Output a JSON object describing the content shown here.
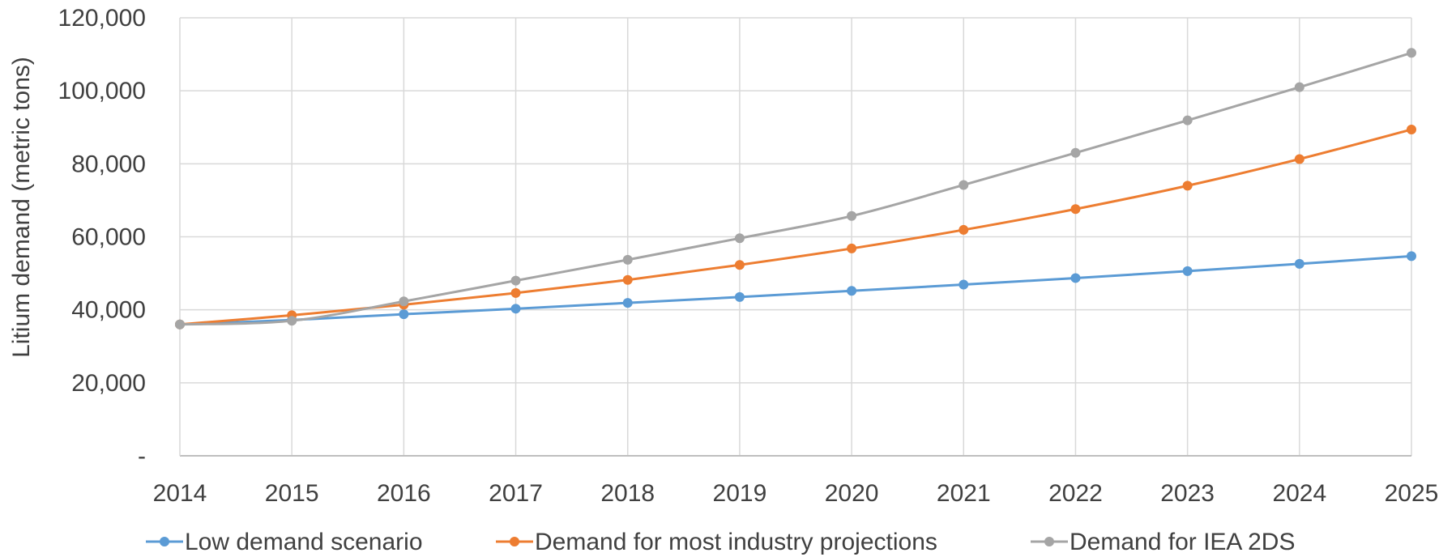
{
  "chart_data": {
    "type": "line",
    "title": "",
    "xlabel": "",
    "ylabel": "Litium demand (metric tons)",
    "x": [
      "2014",
      "2015",
      "2016",
      "2017",
      "2018",
      "2019",
      "2020",
      "2021",
      "2022",
      "2023",
      "2024",
      "2025"
    ],
    "ylim": [
      0,
      120000
    ],
    "yticks": [
      0,
      20000,
      40000,
      60000,
      80000,
      100000,
      120000
    ],
    "ytick_labels": [
      "-",
      "20,000",
      "40,000",
      "60,000",
      "80,000",
      "100,000",
      "120,000"
    ],
    "grid": "on",
    "legend_position": "bottom",
    "series": [
      {
        "name": "Low demand scenario",
        "color": "#5b9bd5",
        "values": [
          36000,
          37200,
          38800,
          40300,
          41900,
          43500,
          45200,
          46900,
          48700,
          50600,
          52600,
          54700
        ]
      },
      {
        "name": "Demand for most industry projections",
        "color": "#ed7d31",
        "values": [
          36000,
          38500,
          41400,
          44600,
          48200,
          52300,
          56800,
          61900,
          67600,
          74000,
          81300,
          89400
        ]
      },
      {
        "name": "Demand for IEA 2DS",
        "color": "#a5a5a5",
        "values": [
          36000,
          37000,
          42300,
          48000,
          53700,
          59600,
          65700,
          74200,
          83000,
          91900,
          101000,
          110400
        ]
      }
    ]
  }
}
